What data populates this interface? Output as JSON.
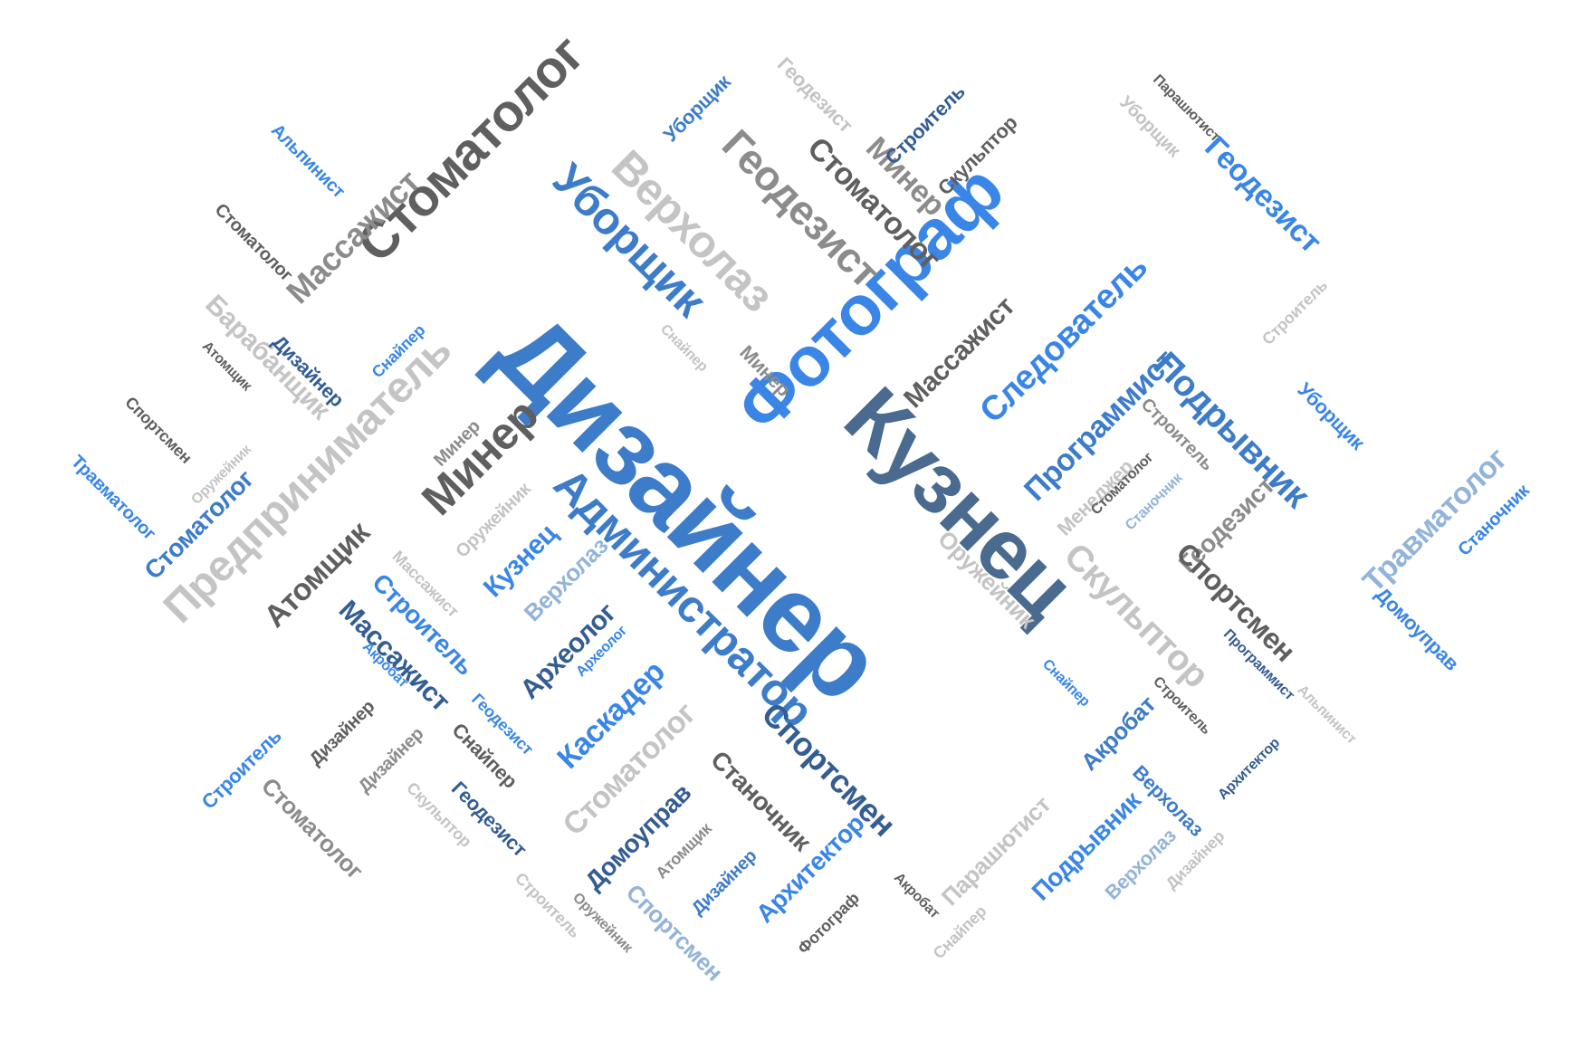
{
  "palette": {
    "blue": "#3d7cc9",
    "bright_blue": "#3a86e6",
    "slate": "#4a6b8f",
    "navy": "#345d92",
    "dark_gray": "#5f5f5f",
    "gray": "#8c8c8c",
    "light_gray": "#c4c4c4",
    "light_blue": "#93b4da",
    "background": "#ffffff"
  },
  "words": [
    {
      "text": "Дизайнер",
      "color": "blue"
    },
    {
      "text": "Фотограф",
      "color": "bright_blue"
    },
    {
      "text": "Кузнец",
      "color": "slate"
    },
    {
      "text": "Администратор",
      "color": "blue"
    },
    {
      "text": "Стоматолог",
      "color": "dark_gray"
    },
    {
      "text": "Уборщик",
      "color": "blue"
    },
    {
      "text": "Верхолаз",
      "color": "light_gray"
    },
    {
      "text": "Геодезист",
      "color": "gray"
    },
    {
      "text": "Стоматолог",
      "color": "dark_gray"
    },
    {
      "text": "Минер",
      "color": "gray"
    },
    {
      "text": "Геодезист",
      "color": "light_gray"
    },
    {
      "text": "Строитель",
      "color": "navy"
    },
    {
      "text": "Скульптор",
      "color": "dark_gray"
    },
    {
      "text": "Уборщик",
      "color": "light_gray"
    },
    {
      "text": "Парашютист",
      "color": "dark_gray"
    },
    {
      "text": "Геодезист",
      "color": "bright_blue"
    },
    {
      "text": "Уборщик",
      "color": "blue"
    },
    {
      "text": "Альпинист",
      "color": "bright_blue"
    },
    {
      "text": "Стоматолог",
      "color": "dark_gray"
    },
    {
      "text": "Массажист",
      "color": "gray"
    },
    {
      "text": "Барабанщик",
      "color": "light_gray"
    },
    {
      "text": "Атомщик",
      "color": "dark_gray"
    },
    {
      "text": "Дизайнер",
      "color": "navy"
    },
    {
      "text": "Снайпер",
      "color": "bright_blue"
    },
    {
      "text": "Предприниматель",
      "color": "light_gray"
    },
    {
      "text": "Спортсмен",
      "color": "dark_gray"
    },
    {
      "text": "Оружейник",
      "color": "light_gray"
    },
    {
      "text": "Травматолог",
      "color": "bright_blue"
    },
    {
      "text": "Стоматолог",
      "color": "blue"
    },
    {
      "text": "Минер",
      "color": "gray"
    },
    {
      "text": "Минер",
      "color": "dark_gray"
    },
    {
      "text": "Минер",
      "color": "gray"
    },
    {
      "text": "Снайпер",
      "color": "light_gray"
    },
    {
      "text": "Атомщик",
      "color": "dark_gray"
    },
    {
      "text": "Оружейник",
      "color": "light_gray"
    },
    {
      "text": "Массажист",
      "color": "light_gray"
    },
    {
      "text": "Кузнец",
      "color": "bright_blue"
    },
    {
      "text": "Строитель",
      "color": "bright_blue"
    },
    {
      "text": "Массажист",
      "color": "navy"
    },
    {
      "text": "Верхолаз",
      "color": "light_blue"
    },
    {
      "text": "Археолог",
      "color": "navy"
    },
    {
      "text": "Археолог",
      "color": "bright_blue"
    },
    {
      "text": "Каскадер",
      "color": "bright_blue"
    },
    {
      "text": "Массажист",
      "color": "dark_gray"
    },
    {
      "text": "Следователь",
      "color": "bright_blue"
    },
    {
      "text": "Программист",
      "color": "blue"
    },
    {
      "text": "Подрывник",
      "color": "blue"
    },
    {
      "text": "Менеджер",
      "color": "light_gray"
    },
    {
      "text": "Стоматолог",
      "color": "dark_gray"
    },
    {
      "text": "Строитель",
      "color": "gray"
    },
    {
      "text": "Строитель",
      "color": "light_gray"
    },
    {
      "text": "Уборщик",
      "color": "bright_blue"
    },
    {
      "text": "Станочник",
      "color": "light_blue"
    },
    {
      "text": "Оружейник",
      "color": "light_gray"
    },
    {
      "text": "Скульптор",
      "color": "light_gray"
    },
    {
      "text": "Геодезист",
      "color": "gray"
    },
    {
      "text": "Спортсмен",
      "color": "dark_gray"
    },
    {
      "text": "Травматолог",
      "color": "light_blue"
    },
    {
      "text": "Станочник",
      "color": "bright_blue"
    },
    {
      "text": "Программист",
      "color": "navy"
    },
    {
      "text": "Домоуправ",
      "color": "bright_blue"
    },
    {
      "text": "Снайпер",
      "color": "bright_blue"
    },
    {
      "text": "Акробат",
      "color": "blue"
    },
    {
      "text": "Строитель",
      "color": "dark_gray"
    },
    {
      "text": "Альпинист",
      "color": "light_gray"
    },
    {
      "text": "Архитектор",
      "color": "navy"
    },
    {
      "text": "Верхолаз",
      "color": "blue"
    },
    {
      "text": "Подрывник",
      "color": "bright_blue"
    },
    {
      "text": "Верхолаз",
      "color": "light_blue"
    },
    {
      "text": "Дизайнер",
      "color": "light_gray"
    },
    {
      "text": "Парашютист",
      "color": "light_gray"
    },
    {
      "text": "Снайпер",
      "color": "light_gray"
    },
    {
      "text": "Акробат",
      "color": "dark_gray"
    },
    {
      "text": "Спортсмен",
      "color": "navy"
    },
    {
      "text": "Станочник",
      "color": "dark_gray"
    },
    {
      "text": "Стоматолог",
      "color": "light_gray"
    },
    {
      "text": "Домоуправ",
      "color": "navy"
    },
    {
      "text": "Атомщик",
      "color": "gray"
    },
    {
      "text": "Дизайнер",
      "color": "blue"
    },
    {
      "text": "Архитектор",
      "color": "bright_blue"
    },
    {
      "text": "Фотограф",
      "color": "dark_gray"
    },
    {
      "text": "Акробат",
      "color": "bright_blue"
    },
    {
      "text": "Строитель",
      "color": "bright_blue"
    },
    {
      "text": "Стоматолог",
      "color": "gray"
    },
    {
      "text": "Дизайнер",
      "color": "dark_gray"
    },
    {
      "text": "Дизайнер",
      "color": "gray"
    },
    {
      "text": "Снайпер",
      "color": "dark_gray"
    },
    {
      "text": "Геодезист",
      "color": "bright_blue"
    },
    {
      "text": "Геодезист",
      "color": "navy"
    },
    {
      "text": "Скульптор",
      "color": "light_gray"
    },
    {
      "text": "Строитель",
      "color": "light_gray"
    },
    {
      "text": "Оружейник",
      "color": "gray"
    },
    {
      "text": "Спортсмен",
      "color": "light_blue"
    }
  ]
}
